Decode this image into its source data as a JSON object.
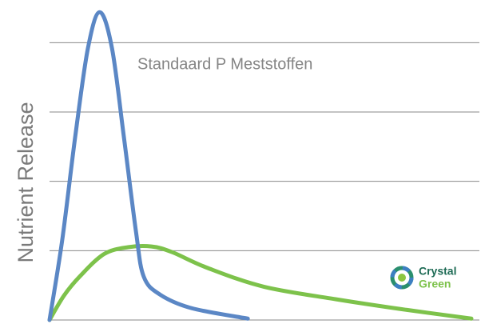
{
  "chart_data": {
    "type": "line",
    "y_label": "Nutrient Release",
    "annotation": "Standaard P Meststoffen",
    "logo": {
      "line1": "Crystal",
      "line2": "Green"
    },
    "xlim": [
      0,
      10
    ],
    "ylim": [
      0,
      4.5
    ],
    "yticks": [
      0,
      1,
      2,
      3,
      4
    ],
    "grid": true,
    "series": [
      {
        "color": "#5b87c5",
        "x": [
          0,
          0.3,
          0.61,
          0.91,
          1.19,
          1.48,
          1.76,
          2.05,
          2.23,
          2.61,
          3.37,
          4.7
        ],
        "values": [
          0,
          1.15,
          2.65,
          3.92,
          4.44,
          3.92,
          2.65,
          1.27,
          0.63,
          0.37,
          0.17,
          0.02
        ]
      },
      {
        "color": "#7dc24b",
        "x": [
          0,
          0.34,
          0.72,
          1.29,
          1.86,
          2.42,
          2.9,
          3.75,
          5.08,
          6.78,
          8.3,
          10
        ],
        "values": [
          0,
          0.35,
          0.63,
          0.95,
          1.05,
          1.06,
          0.98,
          0.75,
          0.48,
          0.3,
          0.16,
          0.02
        ]
      }
    ]
  }
}
